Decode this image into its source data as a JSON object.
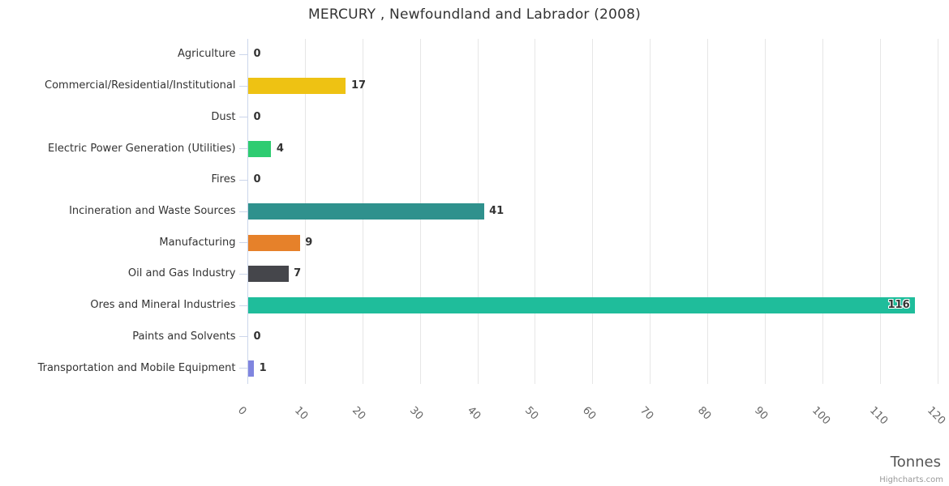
{
  "chart_data": {
    "type": "bar",
    "orientation": "horizontal",
    "title": "MERCURY , Newfoundland and Labrador (2008)",
    "axis_title": "Tonnes",
    "credit": "Highcharts.com",
    "categories": [
      "Agriculture",
      "Commercial/Residential/Institutional",
      "Dust",
      "Electric Power Generation (Utilities)",
      "Fires",
      "Incineration and Waste Sources",
      "Manufacturing",
      "Oil and Gas Industry",
      "Ores and Mineral Industries",
      "Paints and Solvents",
      "Transportation and Mobile Equipment"
    ],
    "values": [
      0,
      17,
      0,
      4,
      0,
      41,
      9,
      7,
      116,
      0,
      1
    ],
    "bar_colors": [
      "",
      "#eec213",
      "",
      "#2ecc71",
      "",
      "#2f918d",
      "#e6812a",
      "#45464b",
      "#1fbd9b",
      "",
      "#8085df"
    ],
    "value_axis": {
      "min": 0,
      "max": 120,
      "tick_interval": 10
    },
    "grid": true,
    "legend": false
  },
  "colors": {
    "background": "#ffffff",
    "grid_line": "#e6e6e6",
    "axis_line": "#ccd6eb",
    "title_text": "#333333",
    "category_text": "#333333",
    "value_text": "#333333",
    "tick_text": "#666666",
    "axis_title_text": "#555555",
    "credit_text": "#999999"
  }
}
